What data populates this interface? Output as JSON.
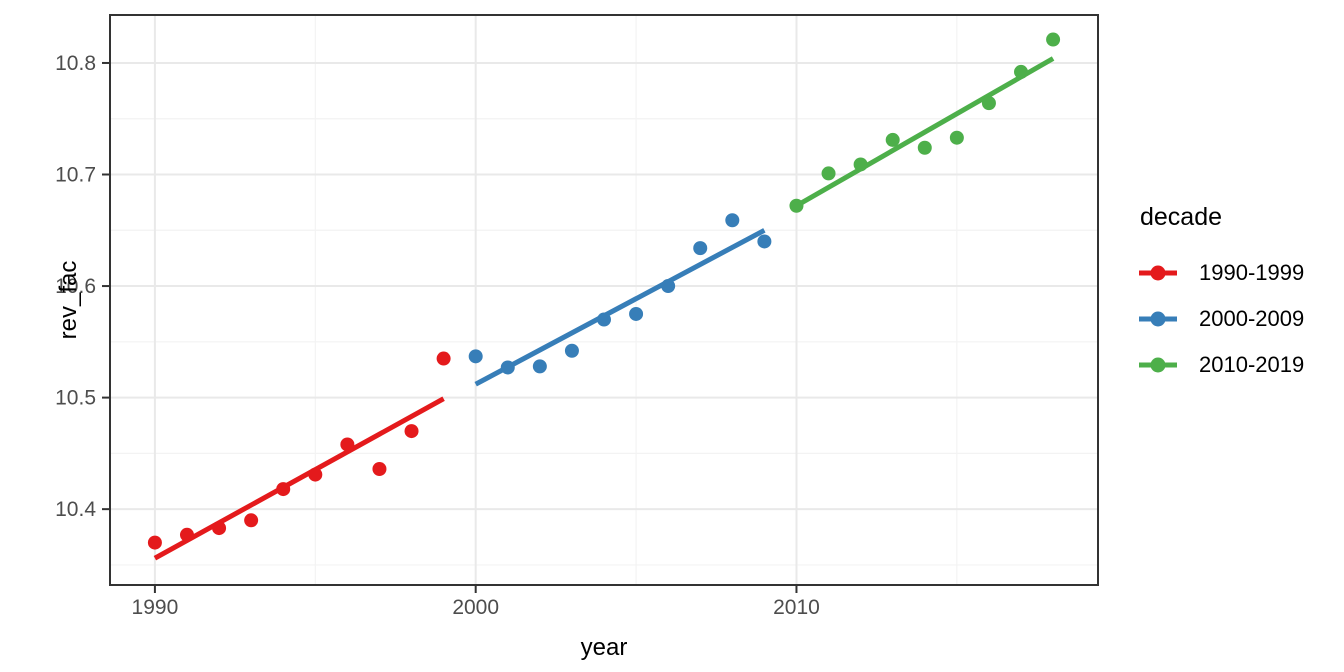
{
  "chart_data": {
    "type": "scatter",
    "title": "",
    "xlabel": "year",
    "ylabel": "rev_fac",
    "legend_title": "decade",
    "legend_position": "right",
    "grid": true,
    "x_domain": [
      1988.6,
      2019.4
    ],
    "y_domain": [
      10.332,
      10.843
    ],
    "x_ticks": [
      {
        "v": 1990,
        "label": "1990"
      },
      {
        "v": 2000,
        "label": "2000"
      },
      {
        "v": 2010,
        "label": "2010"
      }
    ],
    "x_minor_ticks": [
      1995,
      2005,
      2015
    ],
    "y_ticks": [
      {
        "v": 10.4,
        "label": "10.4"
      },
      {
        "v": 10.5,
        "label": "10.5"
      },
      {
        "v": 10.6,
        "label": "10.6"
      },
      {
        "v": 10.7,
        "label": "10.7"
      },
      {
        "v": 10.8,
        "label": "10.8"
      }
    ],
    "y_minor_ticks": [
      10.35,
      10.45,
      10.55,
      10.65,
      10.75
    ],
    "series": [
      {
        "name": "1990-1999",
        "color": "#E41A1C",
        "x": [
          1990,
          1991,
          1992,
          1993,
          1994,
          1995,
          1996,
          1997,
          1998,
          1999
        ],
        "y": [
          10.37,
          10.377,
          10.383,
          10.39,
          10.418,
          10.431,
          10.458,
          10.436,
          10.47,
          10.535
        ],
        "trend": {
          "x": [
            1990,
            1999
          ],
          "y": [
            10.356,
            10.499
          ]
        }
      },
      {
        "name": "2000-2009",
        "color": "#377EB8",
        "x": [
          2000,
          2001,
          2002,
          2003,
          2004,
          2005,
          2006,
          2007,
          2008,
          2009
        ],
        "y": [
          10.537,
          10.527,
          10.528,
          10.542,
          10.57,
          10.575,
          10.6,
          10.634,
          10.659,
          10.64
        ],
        "trend": {
          "x": [
            2000,
            2009
          ],
          "y": [
            10.512,
            10.65
          ]
        }
      },
      {
        "name": "2010-2019",
        "color": "#4DAF4A",
        "x": [
          2010,
          2011,
          2012,
          2013,
          2014,
          2015,
          2016,
          2017,
          2018
        ],
        "y": [
          10.672,
          10.701,
          10.709,
          10.731,
          10.724,
          10.733,
          10.764,
          10.792,
          10.821
        ],
        "trend": {
          "x": [
            2010,
            2018
          ],
          "y": [
            10.672,
            10.804
          ]
        }
      }
    ]
  },
  "style": {
    "background": "#FFFFFF",
    "panel_border": "#333333",
    "grid_major": "#E9E9E9",
    "grid_minor": "#F3F3F3",
    "tick_mark": "#333333",
    "tick_label_color": "#4D4D4D",
    "text_color": "#000000",
    "point_radius": 7,
    "trend_line_width": 5
  }
}
